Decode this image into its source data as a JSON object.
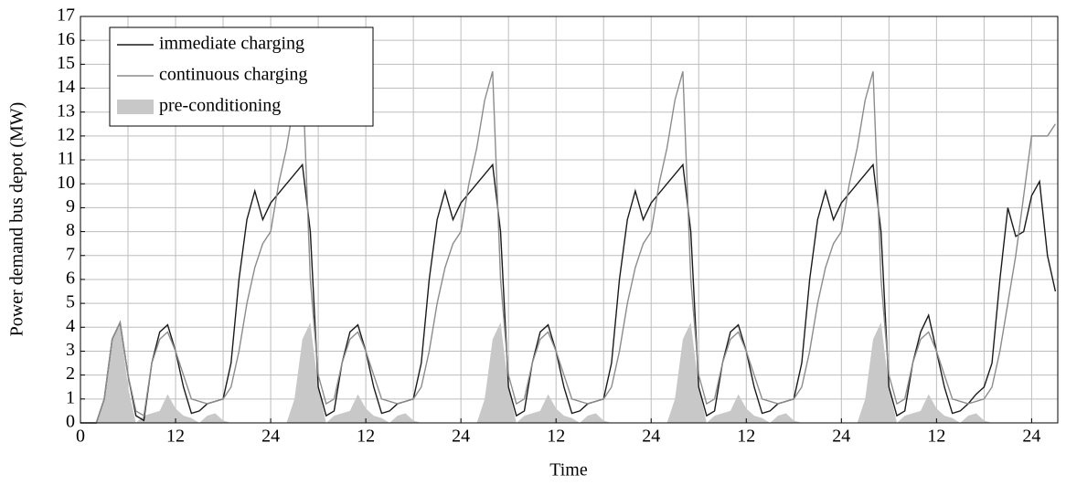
{
  "chart_data": {
    "type": "line",
    "xlabel": "Time",
    "ylabel": "Power demand bus depot (MW)",
    "xlim": [
      0,
      123.3
    ],
    "ylim": [
      0,
      17
    ],
    "xticks": [
      0,
      12,
      24,
      {
        "value": 36,
        "label": "12"
      },
      {
        "value": 48,
        "label": "24"
      },
      {
        "value": 60,
        "label": "12"
      },
      {
        "value": 72,
        "label": "24"
      },
      {
        "value": 84,
        "label": "12"
      },
      {
        "value": 96,
        "label": "24"
      },
      {
        "value": 108,
        "label": "12"
      },
      {
        "value": 120,
        "label": "24"
      }
    ],
    "xminorticks": [
      6,
      18,
      30,
      42,
      54,
      66,
      78,
      90,
      102,
      114
    ],
    "yticks": [
      0,
      1,
      2,
      3,
      4,
      5,
      6,
      7,
      8,
      9,
      10,
      11,
      12,
      13,
      14,
      15,
      16,
      17
    ],
    "grid": true,
    "legend": "upper left",
    "x": [
      0,
      1,
      2,
      3,
      4,
      5,
      6,
      7,
      8,
      9,
      10,
      11,
      12,
      13,
      14,
      15,
      16,
      17,
      18,
      19,
      20,
      21,
      22,
      23,
      24,
      25,
      26,
      27,
      28,
      29,
      30,
      31,
      32,
      33,
      34,
      35,
      36,
      37,
      38,
      39,
      40,
      41,
      42,
      43,
      44,
      45,
      46,
      47,
      48,
      49,
      50,
      51,
      52,
      53,
      54,
      55,
      56,
      57,
      58,
      59,
      60,
      61,
      62,
      63,
      64,
      65,
      66,
      67,
      68,
      69,
      70,
      71,
      72,
      73,
      74,
      75,
      76,
      77,
      78,
      79,
      80,
      81,
      82,
      83,
      84,
      85,
      86,
      87,
      88,
      89,
      90,
      91,
      92,
      93,
      94,
      95,
      96,
      97,
      98,
      99,
      100,
      101,
      102,
      103,
      104,
      105,
      106,
      107,
      108,
      109,
      110,
      111,
      112,
      113,
      114,
      115,
      116,
      117,
      118,
      119,
      120,
      121,
      122,
      123
    ],
    "series": [
      {
        "name": "immediate charging",
        "color": "#1a1a1a",
        "kind": "line",
        "values": [
          0,
          0,
          0,
          1,
          3.5,
          4.2,
          2,
          0.3,
          0.1,
          2.5,
          3.8,
          4.1,
          3,
          1.5,
          0.4,
          0.5,
          0.8,
          0.9,
          1,
          2.5,
          6,
          8.5,
          9.7,
          8.5,
          9.2,
          9.6,
          10,
          10.4,
          10.8,
          8,
          1.5,
          0.3,
          0.5,
          2.5,
          3.8,
          4.1,
          3,
          1.5,
          0.4,
          0.5,
          0.8,
          0.9,
          1,
          2.5,
          6,
          8.5,
          9.7,
          8.5,
          9.2,
          9.6,
          10,
          10.4,
          10.8,
          8,
          1.5,
          0.3,
          0.5,
          2.5,
          3.8,
          4.1,
          3,
          1.5,
          0.4,
          0.5,
          0.8,
          0.9,
          1,
          2.5,
          6,
          8.5,
          9.7,
          8.5,
          9.2,
          9.6,
          10,
          10.4,
          10.8,
          8,
          1.5,
          0.3,
          0.5,
          2.5,
          3.8,
          4.1,
          3,
          1.5,
          0.4,
          0.5,
          0.8,
          0.9,
          1,
          2.5,
          6,
          8.5,
          9.7,
          8.5,
          9.2,
          9.6,
          10,
          10.4,
          10.8,
          8,
          1.5,
          0.3,
          0.5,
          2.5,
          3.8,
          4.5,
          3,
          1.5,
          0.4,
          0.5,
          0.8,
          1.2,
          1.5,
          2.5,
          6,
          9,
          7.8,
          8,
          9.5,
          10.1,
          7,
          5.5
        ]
      },
      {
        "name": "continuous charging",
        "color": "#8c8c8c",
        "kind": "line",
        "values": [
          0,
          0,
          0,
          1,
          3.5,
          4.2,
          2,
          0.5,
          0.3,
          2.5,
          3.5,
          3.8,
          3,
          2,
          1,
          0.9,
          0.8,
          0.9,
          1,
          1.5,
          3,
          5,
          6.5,
          7.5,
          8,
          10,
          11.5,
          13.5,
          14.7,
          6,
          2,
          0.8,
          1,
          2.5,
          3.5,
          3.8,
          3,
          2,
          1,
          0.9,
          0.8,
          0.9,
          1,
          1.5,
          3,
          5,
          6.5,
          7.5,
          8,
          10,
          11.5,
          13.5,
          14.7,
          6,
          2,
          0.8,
          1,
          2.5,
          3.5,
          3.8,
          3,
          2,
          1,
          0.9,
          0.8,
          0.9,
          1,
          1.5,
          3,
          5,
          6.5,
          7.5,
          8,
          10,
          11.5,
          13.5,
          14.7,
          6,
          2,
          0.8,
          1,
          2.5,
          3.5,
          3.8,
          3,
          2,
          1,
          0.9,
          0.8,
          0.9,
          1,
          1.5,
          3,
          5,
          6.5,
          7.5,
          8,
          10,
          11.5,
          13.5,
          14.7,
          6,
          2,
          0.8,
          1,
          2.5,
          3.5,
          3.8,
          3,
          2,
          1,
          0.9,
          0.8,
          0.9,
          1,
          1.5,
          3,
          5,
          7,
          9.5,
          12,
          12,
          12,
          12.5
        ]
      },
      {
        "name": "pre-conditioning",
        "color": "#c8c8c8",
        "kind": "area",
        "values": [
          0,
          0,
          0,
          1,
          3.5,
          4.2,
          1.5,
          0,
          0.3,
          0.4,
          0.5,
          1.2,
          0.6,
          0.3,
          0.2,
          0,
          0.3,
          0.4,
          0.1,
          0,
          0,
          0,
          0,
          0,
          0,
          0,
          0,
          1,
          3.5,
          4.2,
          1.5,
          0,
          0.3,
          0.4,
          0.5,
          1.2,
          0.6,
          0.3,
          0.2,
          0,
          0.3,
          0.4,
          0.1,
          0,
          0,
          0,
          0,
          0,
          0,
          0,
          0,
          1,
          3.5,
          4.2,
          1.5,
          0,
          0.3,
          0.4,
          0.5,
          1.2,
          0.6,
          0.3,
          0.2,
          0,
          0.3,
          0.4,
          0.1,
          0,
          0,
          0,
          0,
          0,
          0,
          0,
          0,
          1,
          3.5,
          4.2,
          1.5,
          0,
          0.3,
          0.4,
          0.5,
          1.2,
          0.6,
          0.3,
          0.2,
          0,
          0.3,
          0.4,
          0.1,
          0,
          0,
          0,
          0,
          0,
          0,
          0,
          0,
          1,
          3.5,
          4.2,
          1.5,
          0,
          0.3,
          0.4,
          0.5,
          1.2,
          0.6,
          0.3,
          0.2,
          0,
          0.3,
          0.4,
          0.1,
          0,
          0,
          0,
          0,
          0,
          0,
          0,
          0,
          0
        ]
      }
    ]
  }
}
